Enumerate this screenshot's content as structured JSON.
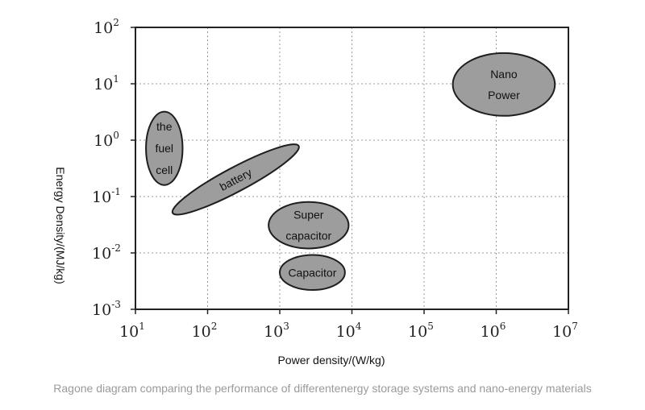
{
  "chart_data": {
    "type": "scatter",
    "xlabel": "Power density/(W/kg)",
    "ylabel": "Energy Density/(MJ/kg)",
    "x_scale": "log",
    "y_scale": "log",
    "xlim": [
      10,
      10000000
    ],
    "ylim": [
      0.001,
      100
    ],
    "x_ticks": [
      {
        "base": "10",
        "exp": "1",
        "value": 10
      },
      {
        "base": "10",
        "exp": "2",
        "value": 100
      },
      {
        "base": "10",
        "exp": "3",
        "value": 1000
      },
      {
        "base": "10",
        "exp": "4",
        "value": 10000
      },
      {
        "base": "10",
        "exp": "5",
        "value": 100000
      },
      {
        "base": "10",
        "exp": "6",
        "value": 1000000
      },
      {
        "base": "10",
        "exp": "7",
        "value": 10000000
      }
    ],
    "y_ticks": [
      {
        "base": "10",
        "exp": "-3",
        "value": 0.001
      },
      {
        "base": "10",
        "exp": "-2",
        "value": 0.01
      },
      {
        "base": "10",
        "exp": "-1",
        "value": 0.1
      },
      {
        "base": "10",
        "exp": "0",
        "value": 1
      },
      {
        "base": "10",
        "exp": "1",
        "value": 10
      },
      {
        "base": "10",
        "exp": "2",
        "value": 100
      }
    ],
    "grid": true,
    "regions": [
      {
        "label_lines": [
          "the",
          "fuel",
          "cell"
        ],
        "x_range": [
          14,
          45
        ],
        "y_range": [
          0.16,
          3.2
        ],
        "angle": 0
      },
      {
        "label_lines": [
          "battery"
        ],
        "x_range": [
          30,
          2000
        ],
        "y_range": [
          0.065,
          0.62
        ],
        "angle": -28
      },
      {
        "label_lines": [
          "Super",
          "capacitor"
        ],
        "x_range": [
          700,
          9000
        ],
        "y_range": [
          0.012,
          0.08
        ],
        "angle": 0
      },
      {
        "label_lines": [
          "Capacitor"
        ],
        "x_range": [
          1000,
          8000
        ],
        "y_range": [
          0.0022,
          0.0092
        ],
        "angle": 0
      },
      {
        "label_lines": [
          "Nano",
          "Power"
        ],
        "x_range": [
          250000,
          6500000
        ],
        "y_range": [
          2.7,
          35
        ],
        "angle": 0
      }
    ]
  },
  "caption": "Ragone diagram comparing the performance of differentenergy storage systems and nano-energy materials"
}
